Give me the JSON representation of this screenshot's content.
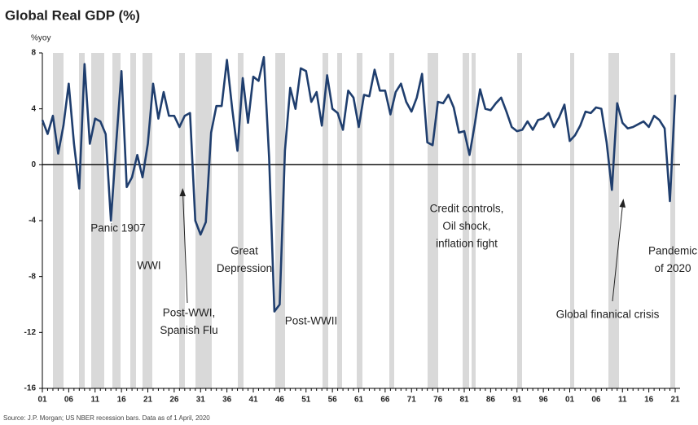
{
  "chart_data": {
    "type": "line",
    "title": "Global Real GDP (%)",
    "y_label": "%yoy",
    "source": "Source: J.P. Morgan; US NBER recession bars. Data as of 1 April, 2020",
    "categories": [
      "01",
      null,
      null,
      null,
      null,
      "06",
      null,
      null,
      null,
      null,
      "11",
      null,
      null,
      null,
      null,
      "16",
      null,
      null,
      null,
      null,
      "21",
      null,
      null,
      null,
      null,
      "26",
      null,
      null,
      null,
      null,
      "31",
      null,
      null,
      null,
      null,
      "36",
      null,
      null,
      null,
      null,
      "41",
      null,
      null,
      null,
      null,
      "46",
      null,
      null,
      null,
      null,
      "51",
      null,
      null,
      null,
      null,
      "56",
      null,
      null,
      null,
      null,
      "61",
      null,
      null,
      null,
      null,
      "66",
      null,
      null,
      null,
      null,
      "71",
      null,
      null,
      null,
      null,
      "76",
      null,
      null,
      null,
      null,
      "81",
      null,
      null,
      null,
      null,
      "86",
      null,
      null,
      null,
      null,
      "91",
      null,
      null,
      null,
      null,
      "96",
      null,
      null,
      null,
      null,
      "01",
      null,
      null,
      null,
      null,
      "06",
      null,
      null,
      null,
      null,
      "11",
      null,
      null,
      null,
      null,
      "16",
      null,
      null,
      null,
      null,
      "21"
    ],
    "series": [
      {
        "name": "Global Real GDP",
        "color": "#1f3e6e",
        "values": [
          3.2,
          2.2,
          3.5,
          0.8,
          2.8,
          5.8,
          1.5,
          -1.7,
          7.2,
          1.5,
          3.3,
          3.1,
          2.2,
          -4.0,
          1.5,
          6.7,
          -1.6,
          -0.9,
          0.7,
          -0.9,
          1.5,
          5.8,
          3.3,
          5.2,
          3.5,
          3.5,
          2.7,
          3.5,
          3.7,
          -4.0,
          -5.0,
          -4.1,
          2.3,
          4.2,
          4.2,
          7.5,
          4.0,
          1.0,
          6.2,
          3.0,
          6.3,
          6.0,
          7.7,
          0.5,
          -10.5,
          -10.0,
          1.0,
          5.5,
          4.0,
          6.9,
          6.7,
          4.5,
          5.2,
          2.8,
          6.4,
          4.0,
          3.7,
          2.5,
          5.3,
          4.8,
          2.7,
          5.0,
          4.9,
          6.8,
          5.3,
          5.3,
          3.6,
          5.2,
          5.8,
          4.5,
          3.8,
          4.8,
          6.5,
          1.6,
          1.4,
          4.5,
          4.4,
          5.0,
          4.1,
          2.3,
          2.4,
          0.7,
          2.9,
          5.4,
          4.0,
          3.9,
          4.4,
          4.8,
          3.8,
          2.7,
          2.4,
          2.5,
          3.1,
          2.5,
          3.2,
          3.3,
          3.7,
          2.7,
          3.4,
          4.3,
          1.7,
          2.1,
          2.8,
          3.8,
          3.7,
          4.1,
          4.0,
          1.6,
          -1.8,
          4.4,
          3.0,
          2.6,
          2.7,
          2.9,
          3.1,
          2.7,
          3.5,
          3.2,
          2.6,
          -2.6,
          5.0
        ]
      }
    ],
    "ylim": [
      -16,
      8
    ],
    "yticks": [
      8,
      4,
      0,
      -4,
      -8,
      -12,
      -16
    ],
    "annotations": [
      {
        "text": [
          "Panic 1907"
        ]
      },
      {
        "text": [
          "WWI"
        ]
      },
      {
        "text": [
          "Post-WWI,",
          "Spanish Flu"
        ]
      },
      {
        "text": [
          "Great",
          "Depression"
        ]
      },
      {
        "text": [
          "Post-WWII"
        ]
      },
      {
        "text": [
          "Credit controls,",
          "Oil shock,",
          "inflation fight"
        ]
      },
      {
        "text": [
          "Global finanical crisis"
        ]
      },
      {
        "text": [
          "Pandemic",
          "of 2020"
        ]
      }
    ]
  }
}
